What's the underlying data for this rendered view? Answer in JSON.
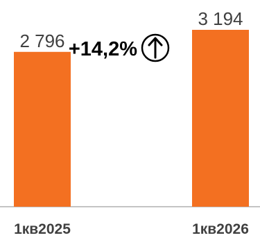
{
  "chart_data": {
    "type": "bar",
    "categories": [
      "1кв2025",
      "1кв2026"
    ],
    "values": [
      2796,
      3194
    ],
    "value_labels": [
      "2 796",
      "3 194"
    ],
    "annotation": "+14,2%",
    "annotation_icon": "arrow-up-circle-icon",
    "bar_color": "#F37021",
    "baseline_color": "#B0B0B0",
    "grid": false
  }
}
